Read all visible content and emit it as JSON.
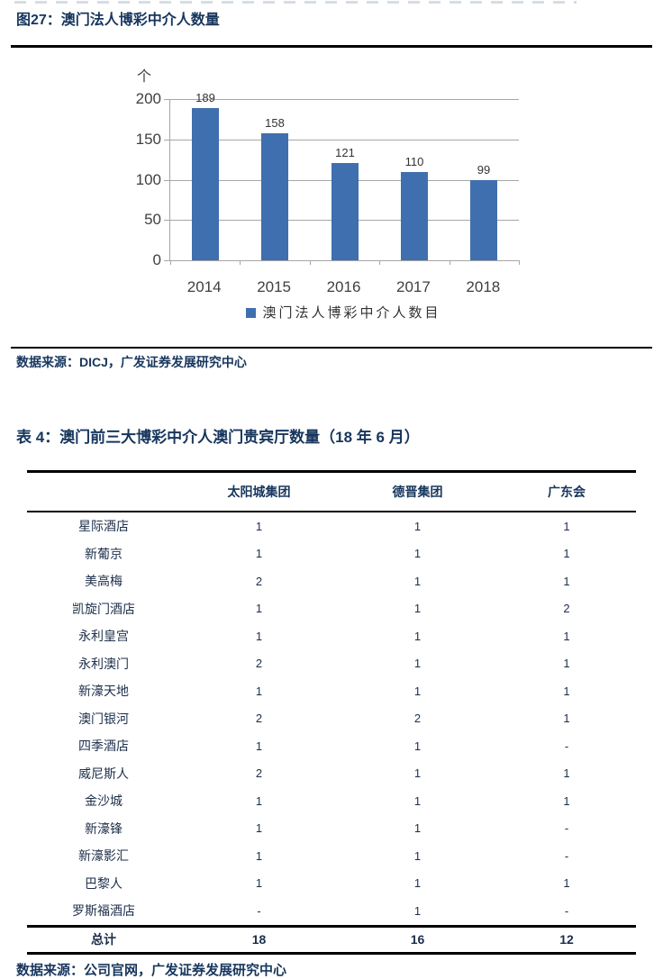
{
  "page": {
    "figure_title": "图27：澳门法人博彩中介人数量",
    "figure_source": "数据来源：DICJ，广发证券发展研究中心",
    "table_title": "表 4：澳门前三大博彩中介人澳门贵宾厅数量（18 年 6 月）",
    "table_source": "数据来源：公司官网，广发证券发展研究中心"
  },
  "chart_data": {
    "type": "bar",
    "title": "澳门法人博彩中介人数量",
    "unit_label": "个",
    "categories": [
      "2014",
      "2015",
      "2016",
      "2017",
      "2018"
    ],
    "values": [
      189,
      158,
      121,
      110,
      99
    ],
    "legend": "澳门法人博彩中介人数目",
    "legend_position": "bottom",
    "xlabel": "",
    "ylabel": "个",
    "ylim": [
      0,
      200
    ],
    "yticks": [
      0,
      50,
      100,
      150,
      200
    ],
    "grid": true,
    "bar_color": "#3f6fae",
    "gridline_color": "#a6a6a6"
  },
  "table": {
    "columns": [
      "",
      "太阳城集团",
      "德晋集团",
      "广东会"
    ],
    "rows": [
      [
        "星际酒店",
        "1",
        "1",
        "1"
      ],
      [
        "新葡京",
        "1",
        "1",
        "1"
      ],
      [
        "美高梅",
        "2",
        "1",
        "1"
      ],
      [
        "凯旋门酒店",
        "1",
        "1",
        "2"
      ],
      [
        "永利皇宫",
        "1",
        "1",
        "1"
      ],
      [
        "永利澳门",
        "2",
        "1",
        "1"
      ],
      [
        "新濠天地",
        "1",
        "1",
        "1"
      ],
      [
        "澳门银河",
        "2",
        "2",
        "1"
      ],
      [
        "四季酒店",
        "1",
        "1",
        "-"
      ],
      [
        "威尼斯人",
        "2",
        "1",
        "1"
      ],
      [
        "金沙城",
        "1",
        "1",
        "1"
      ],
      [
        "新濠锋",
        "1",
        "1",
        "-"
      ],
      [
        "新濠影汇",
        "1",
        "1",
        "-"
      ],
      [
        "巴黎人",
        "1",
        "1",
        "1"
      ],
      [
        "罗斯福酒店",
        "-",
        "1",
        "-"
      ]
    ],
    "total": [
      "总计",
      "18",
      "16",
      "12"
    ]
  },
  "colors": {
    "title_navy": "#17365d",
    "table_text": "#1c2e4a",
    "bar_blue": "#3f6fae",
    "gridline_gray": "#a6a6a6",
    "rule_black": "#000000"
  }
}
